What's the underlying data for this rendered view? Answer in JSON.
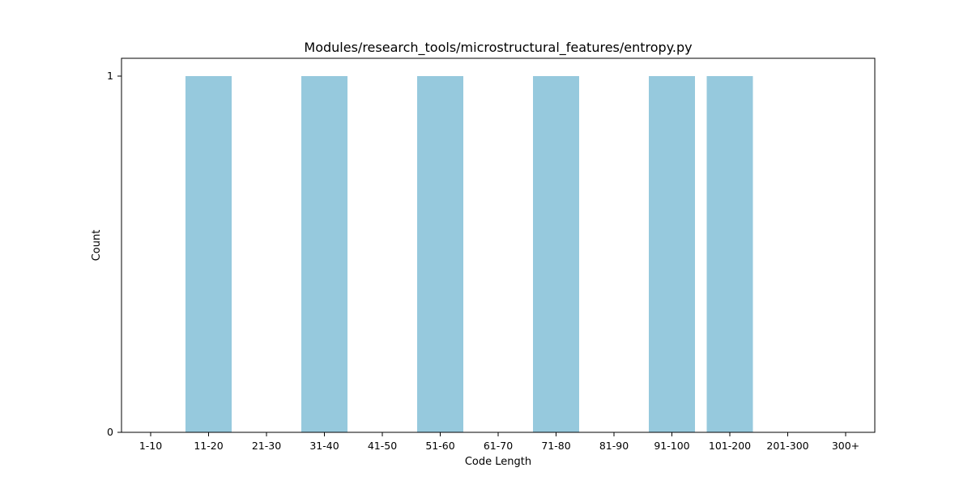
{
  "chart_data": {
    "type": "bar",
    "title": "Modules/research_tools/microstructural_features/entropy.py",
    "xlabel": "Code Length",
    "ylabel": "Count",
    "categories": [
      "1-10",
      "11-20",
      "21-30",
      "31-40",
      "41-50",
      "51-60",
      "61-70",
      "71-80",
      "81-90",
      "91-100",
      "101-200",
      "201-300",
      "300+"
    ],
    "values": [
      0,
      1,
      0,
      1,
      0,
      1,
      0,
      1,
      0,
      1,
      1,
      0,
      0
    ],
    "yticks": [
      "0",
      "1"
    ],
    "ylim": [
      0,
      1.05
    ],
    "grid": false,
    "colors": {
      "bar": "#96c9dd",
      "axis": "#000000"
    }
  }
}
